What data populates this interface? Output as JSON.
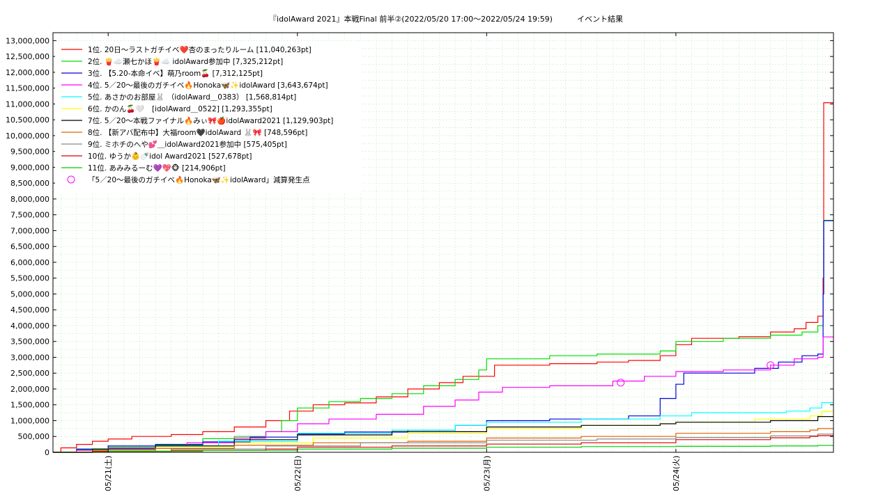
{
  "chart_data": {
    "type": "line",
    "title": "『idolAward 2021』本戦Final 前半②(2022/05/20 17:00～2022/05/24 19:59)          イベント結果",
    "xlabel": "",
    "ylabel": "",
    "x_range": [
      "2022-05-20T17:00",
      "2022-05-24T19:59"
    ],
    "ylim": [
      0,
      13250000
    ],
    "y_ticks": [
      0,
      500000,
      1000000,
      1500000,
      2000000,
      2500000,
      3000000,
      3500000,
      4000000,
      4500000,
      5000000,
      5500000,
      6000000,
      6500000,
      7000000,
      7500000,
      8000000,
      8500000,
      9000000,
      9500000,
      10000000,
      10500000,
      11000000,
      11500000,
      12000000,
      12500000,
      13000000
    ],
    "y_tick_labels": [
      "0",
      "500,000",
      "1,000,000",
      "1,500,000",
      "2,000,000",
      "2,500,000",
      "3,000,000",
      "3,500,000",
      "4,000,000",
      "4,500,000",
      "5,000,000",
      "5,500,000",
      "6,000,000",
      "6,500,000",
      "7,000,000",
      "7,500,000",
      "8,000,000",
      "8,500,000",
      "9,000,000",
      "9,500,000",
      "10,000,000",
      "10,500,000",
      "11,000,000",
      "11,500,000",
      "12,000,000",
      "12,500,000",
      "13,000,000"
    ],
    "x_ticks": [
      {
        "x": "2022-05-21T00:00",
        "label": "05/21(土)"
      },
      {
        "x": "2022-05-22T00:00",
        "label": "05/22(日)"
      },
      {
        "x": "2022-05-23T00:00",
        "label": "05/23(月)"
      },
      {
        "x": "2022-05-24T00:00",
        "label": "05/24(火)"
      }
    ],
    "grid": true,
    "legend_position": "top-left",
    "series": [
      {
        "name": "1位. 20日〜ラストガチイベ❤️杏のまったりルーム [11,040,263pt]",
        "color": "#ff0000",
        "step": true,
        "points": [
          [
            "2022-05-20T17:00",
            0
          ],
          [
            "2022-05-20T18:00",
            140000
          ],
          [
            "2022-05-20T20:00",
            250000
          ],
          [
            "2022-05-20T22:00",
            350000
          ],
          [
            "2022-05-21T00:00",
            420000
          ],
          [
            "2022-05-21T03:00",
            500000
          ],
          [
            "2022-05-21T08:00",
            560000
          ],
          [
            "2022-05-21T12:00",
            650000
          ],
          [
            "2022-05-21T16:00",
            800000
          ],
          [
            "2022-05-21T20:00",
            1000000
          ],
          [
            "2022-05-21T23:00",
            1300000
          ],
          [
            "2022-05-22T02:00",
            1500000
          ],
          [
            "2022-05-22T06:00",
            1560000
          ],
          [
            "2022-05-22T10:00",
            1750000
          ],
          [
            "2022-05-22T14:00",
            2000000
          ],
          [
            "2022-05-22T18:00",
            2200000
          ],
          [
            "2022-05-22T21:00",
            2400000
          ],
          [
            "2022-05-23T01:00",
            2750000
          ],
          [
            "2022-05-23T08:00",
            2800000
          ],
          [
            "2022-05-23T14:00",
            2850000
          ],
          [
            "2022-05-23T18:00",
            2900000
          ],
          [
            "2022-05-23T22:00",
            3050000
          ],
          [
            "2022-05-24T00:00",
            3400000
          ],
          [
            "2022-05-24T02:00",
            3600000
          ],
          [
            "2022-05-24T08:00",
            3650000
          ],
          [
            "2022-05-24T12:00",
            3800000
          ],
          [
            "2022-05-24T15:00",
            3900000
          ],
          [
            "2022-05-24T16:30",
            4100000
          ],
          [
            "2022-05-24T18:00",
            4300000
          ],
          [
            "2022-05-24T18:40",
            5500000
          ],
          [
            "2022-05-24T18:45",
            11040263
          ],
          [
            "2022-05-24T19:59",
            11040263
          ]
        ]
      },
      {
        "name": "2位. 🍟☁️瀬七かほ🍟☁️ idolAward参加中 [7,325,212pt]",
        "color": "#00dd00",
        "step": true,
        "points": [
          [
            "2022-05-20T17:00",
            0
          ],
          [
            "2022-05-20T20:00",
            80000
          ],
          [
            "2022-05-21T00:00",
            160000
          ],
          [
            "2022-05-21T06:00",
            230000
          ],
          [
            "2022-05-21T12:00",
            430000
          ],
          [
            "2022-05-21T16:00",
            500000
          ],
          [
            "2022-05-21T20:00",
            650000
          ],
          [
            "2022-05-21T22:00",
            1000000
          ],
          [
            "2022-05-22T00:00",
            1400000
          ],
          [
            "2022-05-22T04:00",
            1600000
          ],
          [
            "2022-05-22T08:00",
            1700000
          ],
          [
            "2022-05-22T12:00",
            1850000
          ],
          [
            "2022-05-22T16:00",
            2100000
          ],
          [
            "2022-05-22T20:00",
            2300000
          ],
          [
            "2022-05-22T23:00",
            2600000
          ],
          [
            "2022-05-23T00:00",
            2950000
          ],
          [
            "2022-05-23T08:00",
            3050000
          ],
          [
            "2022-05-23T14:00",
            3100000
          ],
          [
            "2022-05-23T22:00",
            3200000
          ],
          [
            "2022-05-24T00:00",
            3500000
          ],
          [
            "2022-05-24T06:00",
            3600000
          ],
          [
            "2022-05-24T12:00",
            3700000
          ],
          [
            "2022-05-24T16:00",
            3800000
          ],
          [
            "2022-05-24T18:00",
            4000000
          ],
          [
            "2022-05-24T18:40",
            5000000
          ],
          [
            "2022-05-24T18:45",
            7325212
          ],
          [
            "2022-05-24T19:59",
            7325212
          ]
        ]
      },
      {
        "name": "3位. 【5.20-本命イベ】萌乃room🍒 [7,312,125pt]",
        "color": "#0000dd",
        "step": true,
        "points": [
          [
            "2022-05-20T17:00",
            0
          ],
          [
            "2022-05-20T20:00",
            100000
          ],
          [
            "2022-05-21T00:00",
            200000
          ],
          [
            "2022-05-21T06:00",
            250000
          ],
          [
            "2022-05-21T12:00",
            330000
          ],
          [
            "2022-05-21T18:00",
            480000
          ],
          [
            "2022-05-22T00:00",
            580000
          ],
          [
            "2022-05-22T06:00",
            640000
          ],
          [
            "2022-05-22T14:00",
            700000
          ],
          [
            "2022-05-22T20:00",
            850000
          ],
          [
            "2022-05-23T00:00",
            1000000
          ],
          [
            "2022-05-23T08:00",
            1050000
          ],
          [
            "2022-05-23T18:00",
            1150000
          ],
          [
            "2022-05-23T22:00",
            1700000
          ],
          [
            "2022-05-24T00:00",
            2150000
          ],
          [
            "2022-05-24T01:00",
            2500000
          ],
          [
            "2022-05-24T10:00",
            2650000
          ],
          [
            "2022-05-24T13:00",
            2850000
          ],
          [
            "2022-05-24T16:00",
            3050000
          ],
          [
            "2022-05-24T18:00",
            3100000
          ],
          [
            "2022-05-24T18:40",
            5000000
          ],
          [
            "2022-05-24T18:45",
            7312125
          ],
          [
            "2022-05-24T19:59",
            7312125
          ]
        ]
      },
      {
        "name": "4位. 5／20〜最後のガチイベ🔥Honoka🦋✨idolAward [3,643,674pt]",
        "color": "#ff00ff",
        "step": true,
        "points": [
          [
            "2022-05-20T17:00",
            0
          ],
          [
            "2022-05-20T20:00",
            60000
          ],
          [
            "2022-05-21T00:00",
            130000
          ],
          [
            "2022-05-21T06:00",
            200000
          ],
          [
            "2022-05-21T10:00",
            300000
          ],
          [
            "2022-05-21T16:00",
            450000
          ],
          [
            "2022-05-21T20:00",
            650000
          ],
          [
            "2022-05-22T00:00",
            900000
          ],
          [
            "2022-05-22T04:00",
            1050000
          ],
          [
            "2022-05-22T10:00",
            1200000
          ],
          [
            "2022-05-22T16:00",
            1450000
          ],
          [
            "2022-05-22T20:00",
            1650000
          ],
          [
            "2022-05-22T23:00",
            1900000
          ],
          [
            "2022-05-23T02:00",
            2050000
          ],
          [
            "2022-05-23T08:00",
            2100000
          ],
          [
            "2022-05-23T16:00",
            2250000
          ],
          [
            "2022-05-23T20:00",
            2400000
          ],
          [
            "2022-05-24T00:00",
            2550000
          ],
          [
            "2022-05-24T06:00",
            2600000
          ],
          [
            "2022-05-24T12:00",
            2750000
          ],
          [
            "2022-05-24T15:00",
            2950000
          ],
          [
            "2022-05-24T18:00",
            3000000
          ],
          [
            "2022-05-24T18:40",
            3643674
          ],
          [
            "2022-05-24T19:59",
            3643674
          ]
        ]
      },
      {
        "name": "5位. あさかのお部屋🐰 （idolAward＿0383） [1,568,814pt]",
        "color": "#00ffff",
        "step": true,
        "points": [
          [
            "2022-05-20T17:00",
            0
          ],
          [
            "2022-05-20T22:00",
            100000
          ],
          [
            "2022-05-21T06:00",
            200000
          ],
          [
            "2022-05-21T14:00",
            350000
          ],
          [
            "2022-05-22T00:00",
            600000
          ],
          [
            "2022-05-22T12:00",
            700000
          ],
          [
            "2022-05-22T20:00",
            850000
          ],
          [
            "2022-05-23T00:00",
            950000
          ],
          [
            "2022-05-23T12:00",
            1050000
          ],
          [
            "2022-05-23T22:00",
            1150000
          ],
          [
            "2022-05-24T02:00",
            1250000
          ],
          [
            "2022-05-24T14:00",
            1300000
          ],
          [
            "2022-05-24T17:00",
            1400000
          ],
          [
            "2022-05-24T18:30",
            1568814
          ],
          [
            "2022-05-24T19:59",
            1568814
          ]
        ]
      },
      {
        "name": "6位. かのん🍒🤍　[idolAward＿0522] [1,293,355pt]",
        "color": "#ffff00",
        "step": true,
        "points": [
          [
            "2022-05-20T17:00",
            0
          ],
          [
            "2022-05-20T22:00",
            60000
          ],
          [
            "2022-05-21T06:00",
            150000
          ],
          [
            "2022-05-21T16:00",
            300000
          ],
          [
            "2022-05-22T02:00",
            450000
          ],
          [
            "2022-05-22T14:00",
            600000
          ],
          [
            "2022-05-23T00:00",
            750000
          ],
          [
            "2022-05-23T12:00",
            850000
          ],
          [
            "2022-05-23T22:00",
            900000
          ],
          [
            "2022-05-24T00:00",
            950000
          ],
          [
            "2022-05-24T10:00",
            1050000
          ],
          [
            "2022-05-24T17:00",
            1150000
          ],
          [
            "2022-05-24T18:30",
            1293355
          ],
          [
            "2022-05-24T19:59",
            1293355
          ]
        ]
      },
      {
        "name": "7位. 5／20〜本戦ファイナル🔥みぃ🎀🍎idolAward2021 [1,129,903pt]",
        "color": "#000000",
        "step": true,
        "points": [
          [
            "2022-05-20T17:00",
            0
          ],
          [
            "2022-05-20T22:00",
            100000
          ],
          [
            "2022-05-21T06:00",
            200000
          ],
          [
            "2022-05-21T16:00",
            400000
          ],
          [
            "2022-05-22T00:00",
            550000
          ],
          [
            "2022-05-22T12:00",
            650000
          ],
          [
            "2022-05-23T00:00",
            800000
          ],
          [
            "2022-05-23T12:00",
            850000
          ],
          [
            "2022-05-23T22:00",
            900000
          ],
          [
            "2022-05-24T00:00",
            950000
          ],
          [
            "2022-05-24T12:00",
            1000000
          ],
          [
            "2022-05-24T18:00",
            1129903
          ],
          [
            "2022-05-24T19:59",
            1129903
          ]
        ]
      },
      {
        "name": "8位. 【新アバ配布中】大福room🖤idolAward 🐰🎀 [748,596pt]",
        "color": "#e06000",
        "step": true,
        "points": [
          [
            "2022-05-20T17:00",
            0
          ],
          [
            "2022-05-20T22:00",
            50000
          ],
          [
            "2022-05-21T06:00",
            120000
          ],
          [
            "2022-05-21T16:00",
            220000
          ],
          [
            "2022-05-22T02:00",
            300000
          ],
          [
            "2022-05-22T14:00",
            350000
          ],
          [
            "2022-05-23T00:00",
            450000
          ],
          [
            "2022-05-23T12:00",
            500000
          ],
          [
            "2022-05-24T00:00",
            600000
          ],
          [
            "2022-05-24T12:00",
            650000
          ],
          [
            "2022-05-24T17:00",
            700000
          ],
          [
            "2022-05-24T18:00",
            748596
          ],
          [
            "2022-05-24T19:59",
            748596
          ]
        ]
      },
      {
        "name": "9位. ミホチのへや💕＿idolAward2021参加中 [575,405pt]",
        "color": "#888888",
        "step": true,
        "points": [
          [
            "2022-05-20T17:00",
            0
          ],
          [
            "2022-05-20T22:00",
            40000
          ],
          [
            "2022-05-21T08:00",
            100000
          ],
          [
            "2022-05-21T20:00",
            200000
          ],
          [
            "2022-05-22T08:00",
            300000
          ],
          [
            "2022-05-23T00:00",
            380000
          ],
          [
            "2022-05-23T14:00",
            420000
          ],
          [
            "2022-05-24T00:00",
            470000
          ],
          [
            "2022-05-24T12:00",
            520000
          ],
          [
            "2022-05-24T18:00",
            575405
          ],
          [
            "2022-05-24T19:59",
            575405
          ]
        ]
      },
      {
        "name": "10位. ゆうか👶🍼idol Award2021 [527,678pt]",
        "color": "#dd0000",
        "step": true,
        "points": [
          [
            "2022-05-20T17:00",
            0
          ],
          [
            "2022-05-20T22:00",
            30000
          ],
          [
            "2022-05-21T08:00",
            60000
          ],
          [
            "2022-05-21T20:00",
            100000
          ],
          [
            "2022-05-22T00:00",
            160000
          ],
          [
            "2022-05-22T12:00",
            200000
          ],
          [
            "2022-05-23T00:00",
            260000
          ],
          [
            "2022-05-23T12:00",
            300000
          ],
          [
            "2022-05-24T00:00",
            400000
          ],
          [
            "2022-05-24T12:00",
            460000
          ],
          [
            "2022-05-24T17:00",
            500000
          ],
          [
            "2022-05-24T18:00",
            527678
          ],
          [
            "2022-05-24T19:59",
            527678
          ]
        ]
      },
      {
        "name": "11位. あみみるーむ💜💖🐵 [214,906pt]",
        "color": "#00cc00",
        "step": true,
        "points": [
          [
            "2022-05-20T17:00",
            0
          ],
          [
            "2022-05-21T00:00",
            30000
          ],
          [
            "2022-05-21T12:00",
            60000
          ],
          [
            "2022-05-22T00:00",
            100000
          ],
          [
            "2022-05-22T12:00",
            130000
          ],
          [
            "2022-05-23T00:00",
            160000
          ],
          [
            "2022-05-23T12:00",
            180000
          ],
          [
            "2022-05-24T00:00",
            190000
          ],
          [
            "2022-05-24T12:00",
            200000
          ],
          [
            "2022-05-24T18:00",
            214906
          ],
          [
            "2022-05-24T19:59",
            214906
          ]
        ]
      }
    ],
    "annotation": {
      "name": "「5／20〜最後のガチイベ🔥Honoka🦋✨idolAward」減算発生点",
      "color": "#ff00ff",
      "marker": "circle",
      "points": [
        [
          "2022-05-23T17:00",
          2200000
        ],
        [
          "2022-05-24T12:00",
          2750000
        ]
      ]
    }
  }
}
